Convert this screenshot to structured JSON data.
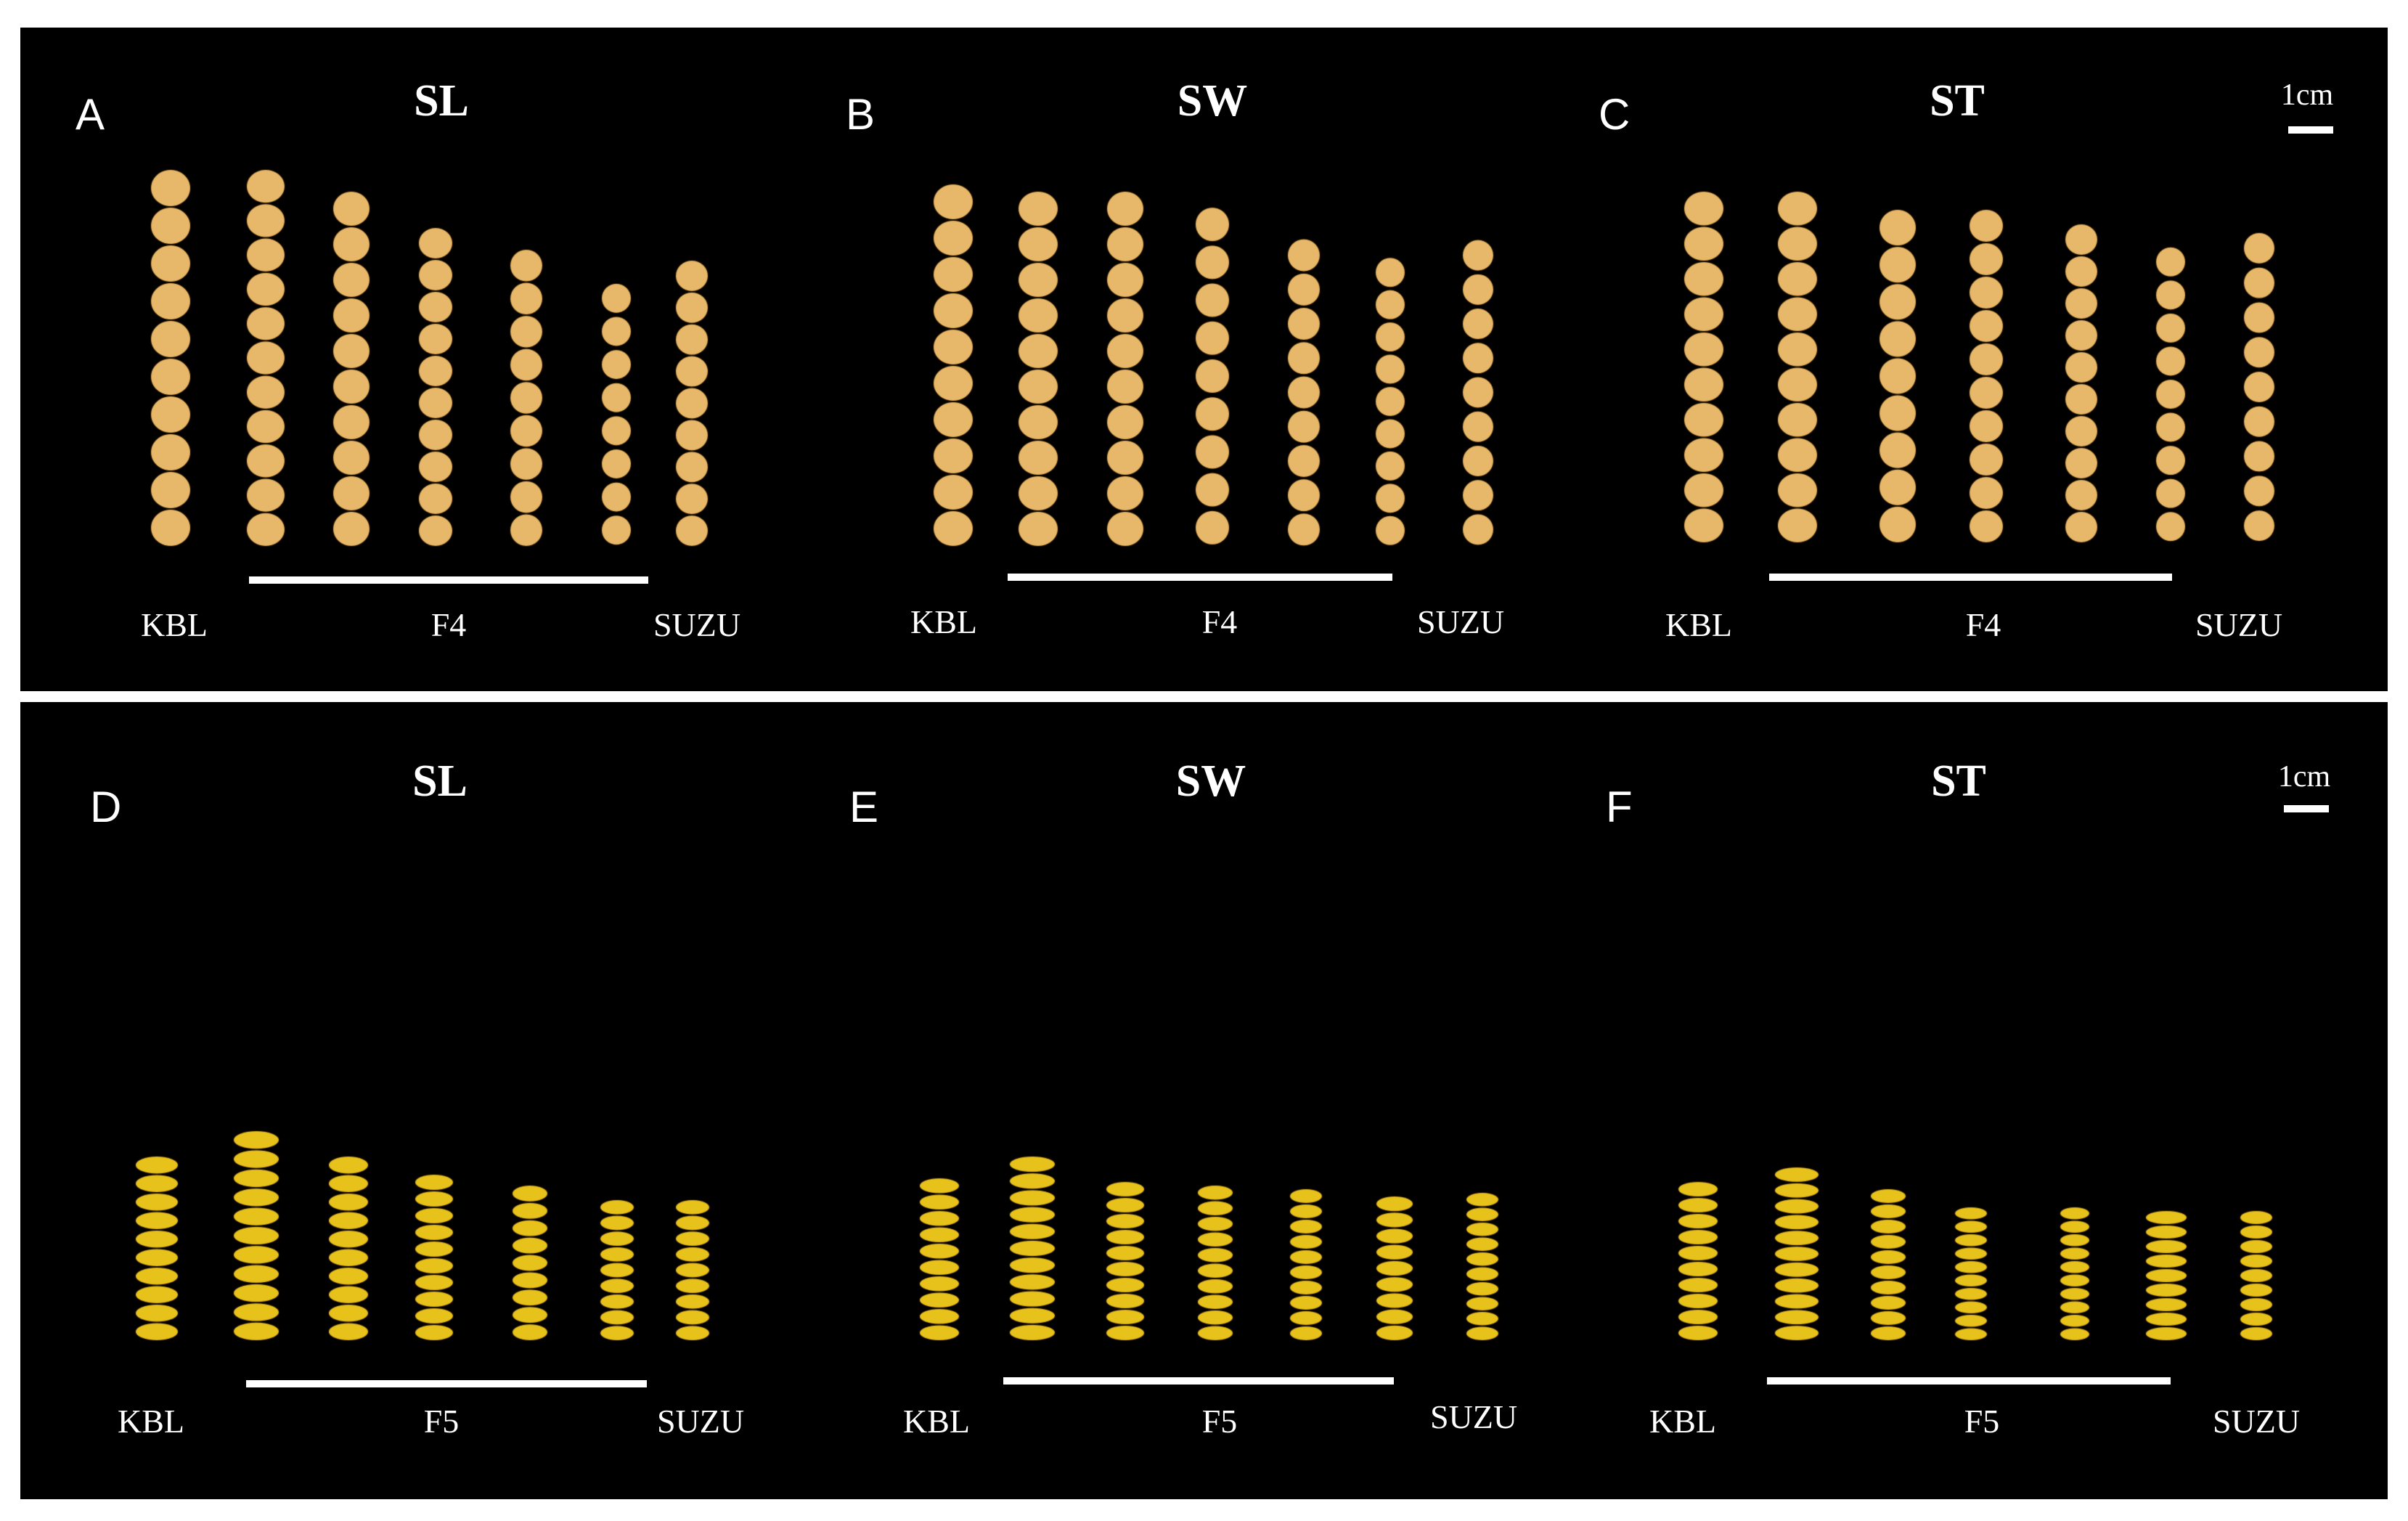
{
  "figure": {
    "seed_colors": {
      "F4": "#e8b86a",
      "F5": "#e6c21a",
      "background": "#000000",
      "text": "#ffffff"
    },
    "rows": [
      {
        "generation": "F4",
        "scale_label": "1cm",
        "panels": [
          {
            "letter": "A",
            "title": "SL",
            "labels": {
              "left": "KBL",
              "middle": "F4",
              "right": "SUZU"
            },
            "seeds_per_column": [
              10,
              11,
              10,
              10,
              9,
              8,
              9
            ]
          },
          {
            "letter": "B",
            "title": "SW",
            "labels": {
              "left": "KBL",
              "middle": "F4",
              "right": "SUZU"
            },
            "seeds_per_column": [
              10,
              10,
              10,
              9,
              9,
              9,
              9
            ]
          },
          {
            "letter": "C",
            "title": "ST",
            "labels": {
              "left": "KBL",
              "middle": "F4",
              "right": "SUZU"
            },
            "seeds_per_column": [
              10,
              10,
              9,
              10,
              10,
              9,
              9
            ]
          }
        ]
      },
      {
        "generation": "F5",
        "scale_label": "1cm",
        "panels": [
          {
            "letter": "D",
            "title": "SL",
            "labels": {
              "left": "KBL",
              "middle": "F5",
              "right": "SUZU"
            },
            "seeds_per_column": [
              10,
              11,
              10,
              10,
              9,
              9,
              9
            ]
          },
          {
            "letter": "E",
            "title": "SW",
            "labels": {
              "left": "KBL",
              "middle": "F5",
              "right": "SUZU"
            },
            "seeds_per_column": [
              10,
              11,
              10,
              10,
              10,
              9,
              10
            ]
          },
          {
            "letter": "F",
            "title": "ST",
            "labels": {
              "left": "KBL",
              "middle": "F5",
              "right": "SUZU"
            },
            "seeds_per_column": [
              10,
              11,
              10,
              10,
              10,
              9,
              9
            ]
          }
        ]
      }
    ]
  }
}
